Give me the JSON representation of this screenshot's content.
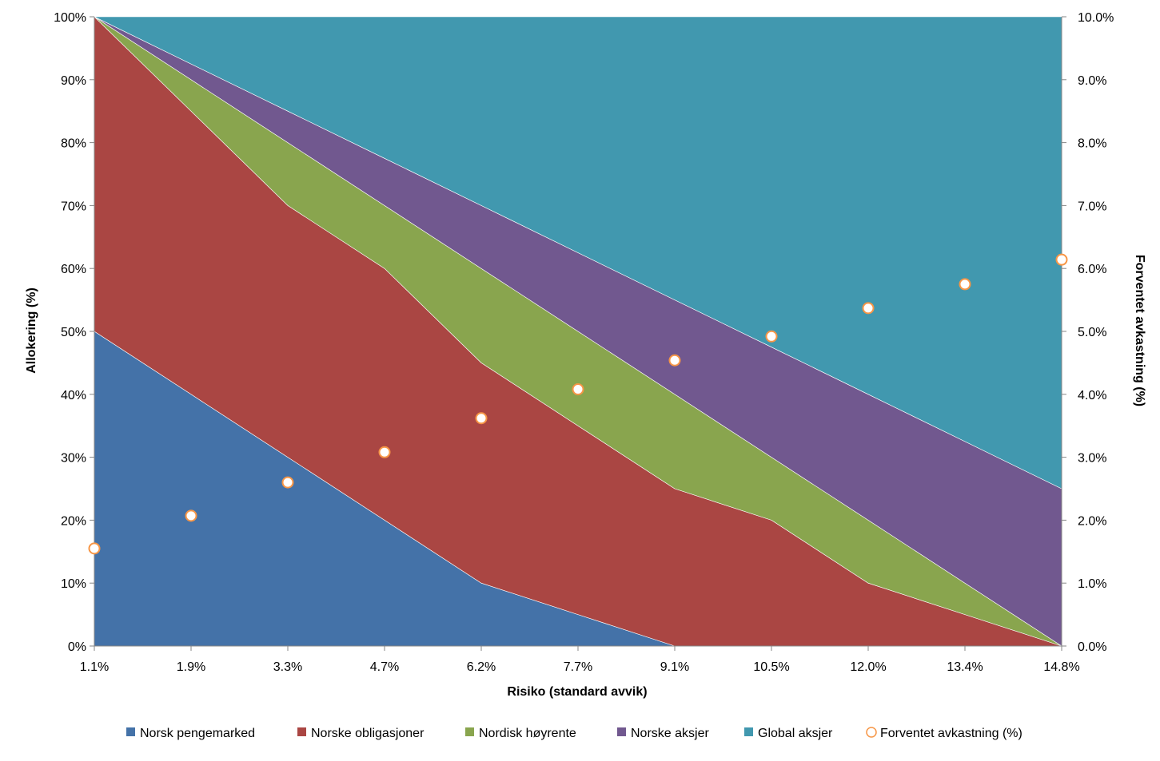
{
  "chart_data": {
    "type": "area",
    "stacked": true,
    "title": "",
    "xlabel": "Risiko (standard avvik)",
    "ylabel": "Allokering (%)",
    "y2label": "Forventet avkastning (%)",
    "categories": [
      "1.1%",
      "1.9%",
      "3.3%",
      "4.7%",
      "6.2%",
      "7.7%",
      "9.1%",
      "10.5%",
      "12.0%",
      "13.4%",
      "14.8%"
    ],
    "ylim": [
      0,
      100
    ],
    "y2lim": [
      0,
      10
    ],
    "y_ticks": [
      "0%",
      "10%",
      "20%",
      "30%",
      "40%",
      "50%",
      "60%",
      "70%",
      "80%",
      "90%",
      "100%"
    ],
    "y2_ticks": [
      "0.0%",
      "1.0%",
      "2.0%",
      "3.0%",
      "4.0%",
      "5.0%",
      "6.0%",
      "7.0%",
      "8.0%",
      "9.0%",
      "10.0%"
    ],
    "grid": false,
    "legend_position": "bottom",
    "series": [
      {
        "name": "Norsk pengemarked",
        "color": "#4472A8",
        "values": [
          50,
          40,
          30,
          20,
          10,
          5,
          0,
          0,
          0,
          0,
          0
        ]
      },
      {
        "name": "Norske obligasjoner",
        "color": "#AA4643",
        "values": [
          50,
          45,
          40,
          40,
          35,
          30,
          25,
          20,
          10,
          5,
          0
        ]
      },
      {
        "name": "Nordisk høyrente",
        "color": "#89A54E",
        "values": [
          0,
          5,
          10,
          10,
          15,
          15,
          15,
          10,
          10,
          5,
          0
        ]
      },
      {
        "name": "Norske aksjer",
        "color": "#71588F",
        "values": [
          0,
          2.5,
          5,
          7.5,
          10,
          12.5,
          15,
          17.5,
          20,
          22.5,
          25
        ]
      },
      {
        "name": "Global aksjer",
        "color": "#4198AF",
        "values": [
          0,
          7.5,
          15,
          22.5,
          30,
          37.5,
          45,
          52.5,
          60,
          67.5,
          75
        ]
      }
    ],
    "scatter_series": {
      "name": "Forventet avkastning (%)",
      "axis": "right",
      "marker_edge_color": "#F79646",
      "marker_fill_color": "#FFFFFF",
      "values": [
        1.55,
        2.07,
        2.6,
        3.08,
        3.62,
        4.08,
        4.54,
        4.92,
        5.37,
        5.75,
        6.14
      ]
    }
  }
}
